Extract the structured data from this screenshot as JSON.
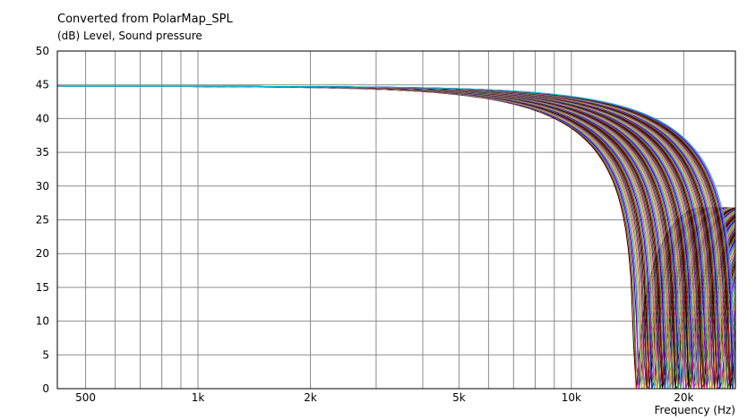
{
  "chart_data": {
    "type": "line",
    "title": "Converted from PolarMap_SPL",
    "ylabel": "(dB)  Level, Sound pressure",
    "xlabel": "Frequency  (Hz)",
    "x_scale": "log",
    "xlim": [
      420,
      27500
    ],
    "ylim": [
      0,
      50
    ],
    "grid": true,
    "x_ticks": [
      {
        "value": 500,
        "label": "500"
      },
      {
        "value": 1000,
        "label": "1k"
      },
      {
        "value": 2000,
        "label": "2k"
      },
      {
        "value": 5000,
        "label": "5k"
      },
      {
        "value": 10000,
        "label": "10k"
      },
      {
        "value": 20000,
        "label": "20k"
      }
    ],
    "y_ticks": [
      {
        "value": 0,
        "label": "0"
      },
      {
        "value": 5,
        "label": "5"
      },
      {
        "value": 10,
        "label": "10"
      },
      {
        "value": 15,
        "label": "15"
      },
      {
        "value": 20,
        "label": "20"
      },
      {
        "value": 25,
        "label": "25"
      },
      {
        "value": 30,
        "label": "30"
      },
      {
        "value": 35,
        "label": "35"
      },
      {
        "value": 40,
        "label": "40"
      },
      {
        "value": 45,
        "label": "45"
      },
      {
        "value": 50,
        "label": "50"
      }
    ],
    "x_minor_grid": [
      600,
      700,
      800,
      900,
      3000,
      4000,
      6000,
      7000,
      8000,
      9000
    ],
    "series_count": 90,
    "series_level_db": 44.8,
    "series_null_frequency_range_hz": [
      14800,
      27500
    ],
    "side_lobe_peak_db": 26.8,
    "series_colors": [
      "#000000",
      "#ff0000",
      "#00cc00",
      "#0000ff",
      "#ff00ff",
      "#00cccc",
      "#cccc00",
      "#808080",
      "#ff8000",
      "#8000ff",
      "#008000",
      "#800000"
    ]
  }
}
